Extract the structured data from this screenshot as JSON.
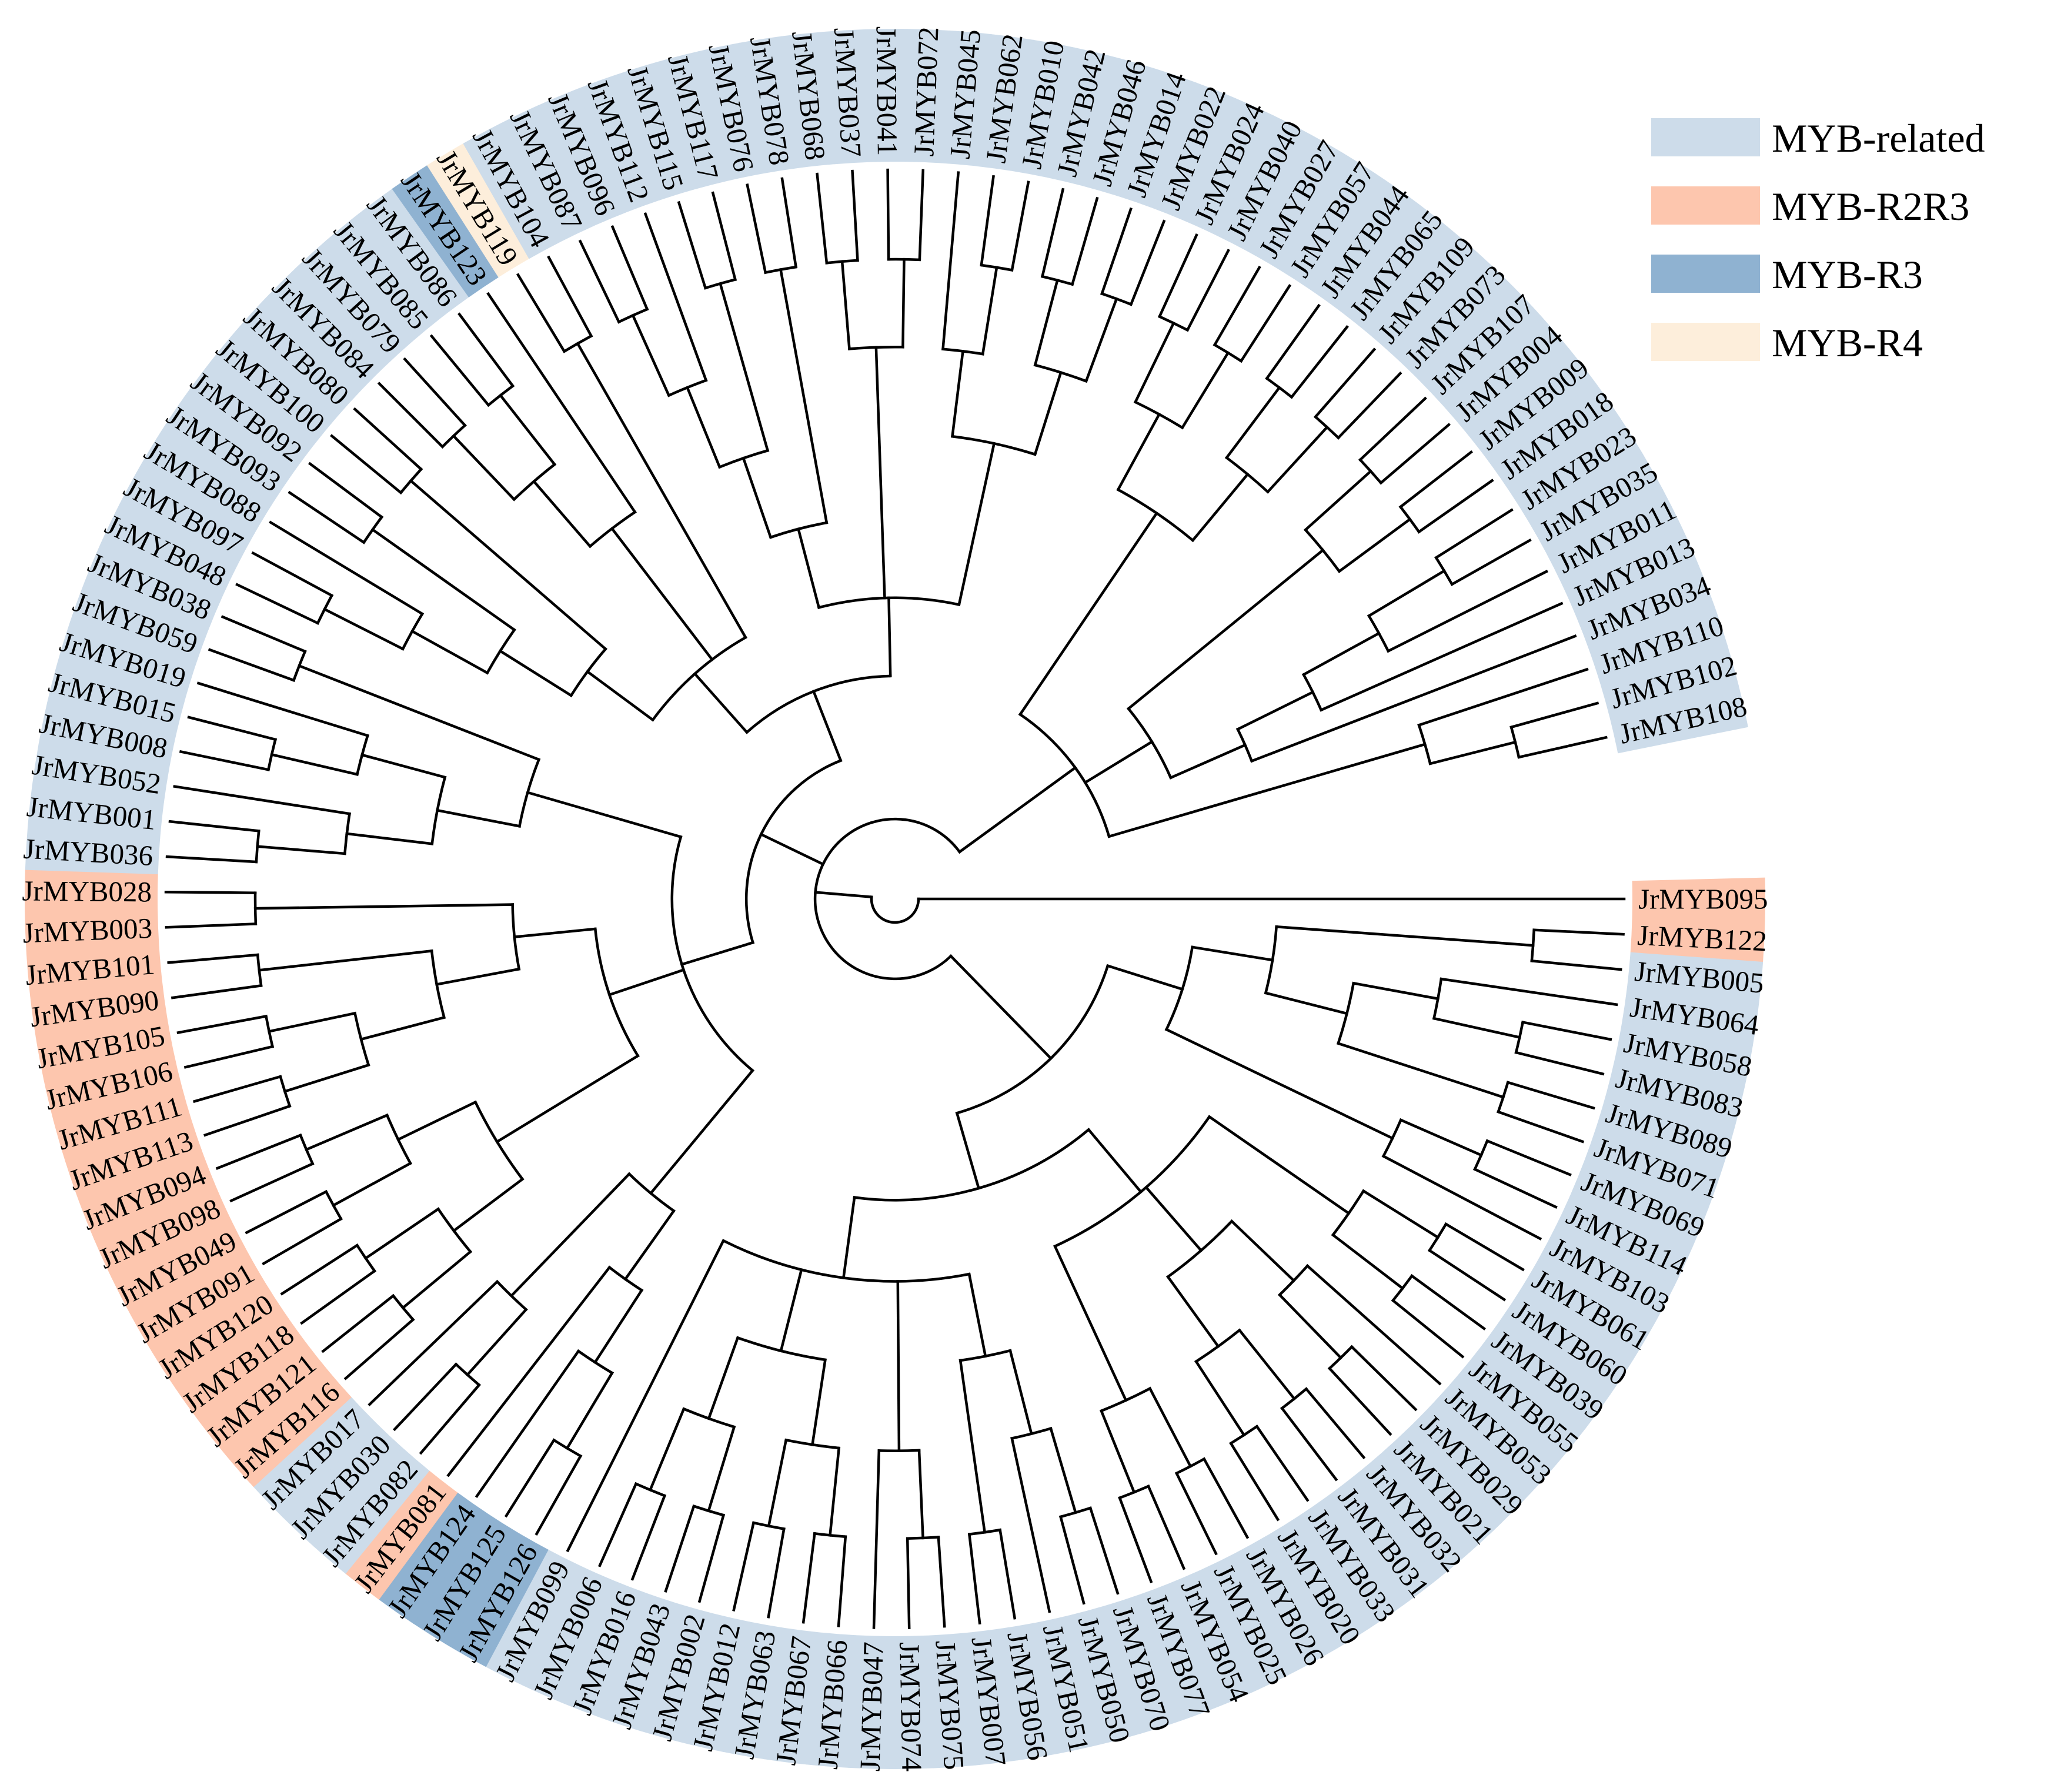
{
  "legend": [
    {
      "key": "related",
      "label": "MYB-related",
      "color": "#cddcea"
    },
    {
      "key": "r2r3",
      "label": "MYB-R2R3",
      "color": "#fdc6ae"
    },
    {
      "key": "r3",
      "label": "MYB-R3",
      "color": "#8fb2d1"
    },
    {
      "key": "r4",
      "label": "MYB-R4",
      "color": "#fdeedb"
    }
  ],
  "line_color": "#000000",
  "leaf_groups": {
    "r2r3": [
      "JrMYB095",
      "JrMYB122",
      "JrMYB116",
      "JrMYB121",
      "JrMYB118",
      "JrMYB120",
      "JrMYB091",
      "JrMYB049",
      "JrMYB098",
      "JrMYB094",
      "JrMYB113",
      "JrMYB111",
      "JrMYB106",
      "JrMYB105",
      "JrMYB090",
      "JrMYB101",
      "JrMYB003",
      "JrMYB028",
      "JrMYB081"
    ],
    "r3": [
      "JrMYB126",
      "JrMYB125",
      "JrMYB124",
      "JrMYB123"
    ],
    "r4": [
      "JrMYB119"
    ],
    "default": "related"
  },
  "tree": [
    "JrMYB095",
    [
      [
        [
          [
            [
              "JrMYB122",
              "JrMYB005"
            ],
            [
              [
                "JrMYB064",
                [
                  "JrMYB058",
                  "JrMYB083"
                ]
              ],
              [
                "JrMYB089",
                "JrMYB071"
              ]
            ]
          ],
          [
            [
              "JrMYB069",
              "JrMYB114"
            ],
            "JrMYB103"
          ]
        ],
        [
          [
            [
              [
                "JrMYB061",
                "JrMYB060"
              ],
              [
                "JrMYB039",
                "JrMYB055"
              ]
            ],
            [
              [
                "JrMYB053",
                [
                  "JrMYB029",
                  "JrMYB021"
                ]
              ],
              [
                [
                  "JrMYB032",
                  "JrMYB031"
                ],
                [
                  "JrMYB033",
                  "JrMYB020"
                ]
              ]
            ],
            [
              [
                "JrMYB026",
                "JrMYB025"
              ],
              [
                "JrMYB054",
                "JrMYB077"
              ]
            ]
          ],
          [
            [
              [
                [
                  "JrMYB070",
                  "JrMYB050"
                ],
                "JrMYB051"
              ],
              [
                "JrMYB056",
                "JrMYB007"
              ]
            ],
            [
              [
                "JrMYB075",
                "JrMYB074"
              ],
              "JrMYB047"
            ],
            [
              [
                [
                  "JrMYB066",
                  "JrMYB067"
                ],
                [
                  "JrMYB063",
                  "JrMYB012"
                ]
              ],
              [
                [
                  "JrMYB002",
                  "JrMYB043"
                ],
                [
                  "JrMYB016",
                  "JrMYB006"
                ]
              ]
            ],
            "JrMYB099"
          ]
        ]
      ],
      [
        [
          [
            [
              [
                [
                  "JrMYB126",
                  "JrMYB125"
                ],
                "JrMYB124"
              ],
              "JrMYB081"
            ],
            [
              [
                "JrMYB082",
                "JrMYB030"
              ],
              "JrMYB017"
            ]
          ],
          [
            [
              [
                [
                  "JrMYB116",
                  "JrMYB121"
                ],
                [
                  "JrMYB118",
                  "JrMYB120"
                ]
              ],
              [
                [
                  "JrMYB091",
                  "JrMYB049"
                ],
                [
                  "JrMYB098",
                  "JrMYB094"
                ]
              ]
            ],
            [
              [
                [
                  [
                    "JrMYB113",
                    "JrMYB111"
                  ],
                  [
                    "JrMYB106",
                    "JrMYB105"
                  ]
                ],
                [
                  "JrMYB090",
                  "JrMYB101"
                ]
              ],
              [
                "JrMYB003",
                "JrMYB028"
              ]
            ]
          ],
          [
            [
              [
                [
                  "JrMYB036",
                  "JrMYB001"
                ],
                "JrMYB052"
              ],
              [
                [
                  "JrMYB008",
                  "JrMYB015"
                ],
                "JrMYB019"
              ]
            ],
            [
              "JrMYB059",
              "JrMYB038"
            ]
          ]
        ],
        [
          [
            [
              [
                [
                  [
                    "JrMYB048",
                    "JrMYB097"
                  ],
                  "JrMYB088"
                ],
                [
                  "JrMYB093",
                  "JrMYB092"
                ]
              ],
              [
                "JrMYB100",
                "JrMYB080"
              ]
            ],
            [
              [
                [
                  "JrMYB084",
                  "JrMYB079"
                ],
                [
                  "JrMYB085",
                  "JrMYB086"
                ]
              ],
              "JrMYB123"
            ],
            [
              "JrMYB119",
              "JrMYB104"
            ]
          ],
          [
            [
              [
                [
                  [
                    "JrMYB087",
                    "JrMYB096"
                  ],
                  "JrMYB112"
                ],
                [
                  "JrMYB115",
                  "JrMYB117"
                ]
              ],
              [
                "JrMYB076",
                "JrMYB078"
              ]
            ],
            [
              [
                "JrMYB068",
                "JrMYB037"
              ],
              [
                "JrMYB041",
                "JrMYB072"
              ]
            ],
            [
              [
                "JrMYB045",
                [
                  "JrMYB062",
                  "JrMYB010"
                ]
              ],
              [
                [
                  "JrMYB042",
                  "JrMYB046"
                ],
                [
                  "JrMYB014",
                  "JrMYB022"
                ]
              ]
            ]
          ]
        ]
      ],
      [
        [
          [
            [
              "JrMYB024",
              "JrMYB040"
            ],
            [
              "JrMYB027",
              "JrMYB057"
            ]
          ],
          [
            [
              "JrMYB044",
              "JrMYB065"
            ],
            [
              "JrMYB109",
              "JrMYB073"
            ]
          ]
        ],
        [
          [
            [
              "JrMYB107",
              "JrMYB004"
            ],
            [
              "JrMYB009",
              "JrMYB018"
            ]
          ],
          [
            [
              [
                [
                  "JrMYB023",
                  "JrMYB035"
                ],
                "JrMYB011"
              ],
              "JrMYB013"
            ],
            "JrMYB034"
          ]
        ],
        [
          "JrMYB110",
          [
            "JrMYB102",
            "JrMYB108"
          ]
        ]
      ]
    ]
  ]
}
